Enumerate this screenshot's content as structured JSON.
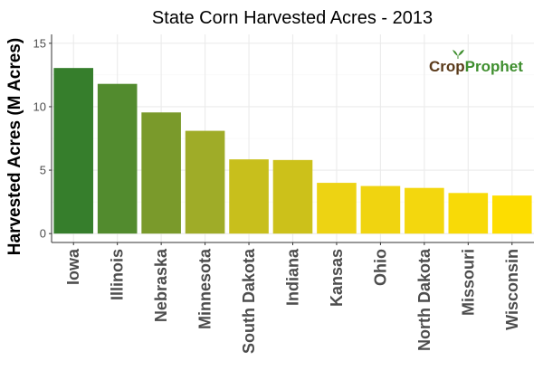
{
  "chart_data": {
    "type": "bar",
    "title": "State Corn Harvested Acres - 2013",
    "xlabel": "",
    "ylabel": "Harvested Acres (M Acres)",
    "ylim": [
      -0.7,
      15.7
    ],
    "yticks": [
      0,
      5,
      10,
      15
    ],
    "grid": true,
    "categories": [
      "Iowa",
      "Illinois",
      "Nebraska",
      "Minnesota",
      "South Dakota",
      "Indiana",
      "Kansas",
      "Ohio",
      "North Dakota",
      "Missouri",
      "Wisconsin"
    ],
    "values": [
      13.05,
      11.8,
      9.55,
      8.1,
      5.85,
      5.8,
      4.0,
      3.75,
      3.6,
      3.2,
      3.0
    ],
    "colors": [
      "#367e2c",
      "#528b2e",
      "#7a9a2b",
      "#9fac28",
      "#c8bf1c",
      "#ccc11a",
      "#edd313",
      "#f0d410",
      "#f3d70e",
      "#f8da07",
      "#fddd00"
    ]
  },
  "logo": {
    "crop_text": "Crop",
    "prophet_text": "Prophet"
  }
}
